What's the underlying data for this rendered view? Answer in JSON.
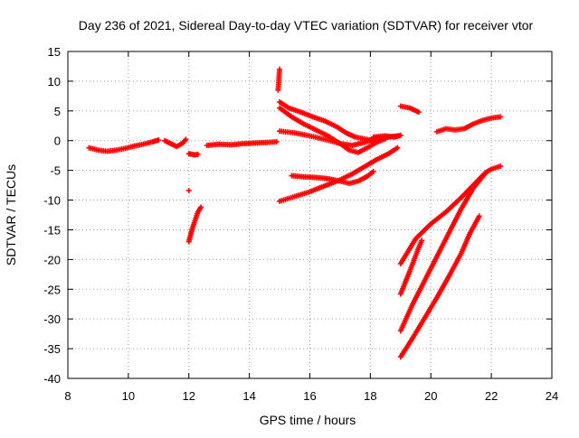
{
  "chart_data": {
    "type": "scatter",
    "title": "Day 236 of 2021, Sidereal Day-to-day VTEC variation (SDTVAR) for receiver vtor",
    "xlabel": "GPS time / hours",
    "ylabel": "SDTVAR / TECUs",
    "xlim": [
      8,
      24
    ],
    "ylim": [
      -40,
      15
    ],
    "xticks": [
      8,
      10,
      12,
      14,
      16,
      18,
      20,
      22,
      24
    ],
    "yticks": [
      -40,
      -35,
      -30,
      -25,
      -20,
      -15,
      -10,
      -5,
      0,
      5,
      10,
      15
    ],
    "grid": true,
    "marker": "+",
    "color": "#ff0000",
    "series": [
      {
        "points": [
          [
            8.7,
            -1.2
          ],
          [
            9.0,
            -1.6
          ],
          [
            9.3,
            -1.8
          ],
          [
            9.6,
            -1.6
          ],
          [
            9.9,
            -1.3
          ],
          [
            10.2,
            -0.9
          ],
          [
            10.5,
            -0.6
          ],
          [
            10.8,
            -0.2
          ],
          [
            11.0,
            0.1
          ]
        ]
      },
      {
        "points": [
          [
            11.2,
            0.0
          ],
          [
            11.4,
            -0.5
          ],
          [
            11.6,
            -1.0
          ],
          [
            11.8,
            -0.4
          ],
          [
            11.9,
            0.2
          ]
        ]
      },
      {
        "points": [
          [
            12.0,
            -2.2
          ],
          [
            12.2,
            -2.4
          ],
          [
            12.3,
            -2.3
          ]
        ]
      },
      {
        "points": [
          [
            12.0,
            -8.4
          ]
        ]
      },
      {
        "points": [
          [
            12.0,
            -17.0
          ],
          [
            12.1,
            -15.0
          ],
          [
            12.2,
            -13.5
          ],
          [
            12.3,
            -12.0
          ],
          [
            12.4,
            -11.2
          ]
        ]
      },
      {
        "points": [
          [
            12.6,
            -0.8
          ],
          [
            13.0,
            -0.6
          ],
          [
            13.4,
            -0.7
          ],
          [
            13.8,
            -0.5
          ],
          [
            14.2,
            -0.4
          ],
          [
            14.6,
            -0.3
          ],
          [
            14.9,
            -0.2
          ]
        ]
      },
      {
        "points": [
          [
            15.0,
            12.0
          ],
          [
            14.95,
            8.5
          ]
        ]
      },
      {
        "points": [
          [
            15.0,
            6.5
          ],
          [
            15.3,
            5.5
          ],
          [
            15.7,
            4.8
          ],
          [
            16.1,
            4.0
          ],
          [
            16.5,
            3.3
          ],
          [
            16.9,
            2.3
          ],
          [
            17.2,
            1.3
          ],
          [
            17.5,
            0.6
          ],
          [
            17.8,
            0.3
          ],
          [
            18.1,
            0.0
          ]
        ]
      },
      {
        "points": [
          [
            15.0,
            5.5
          ],
          [
            15.4,
            4.0
          ],
          [
            15.8,
            2.8
          ],
          [
            16.2,
            1.8
          ],
          [
            16.6,
            0.8
          ],
          [
            17.0,
            -0.5
          ],
          [
            17.3,
            -1.6
          ],
          [
            17.6,
            -2.0
          ],
          [
            17.9,
            -1.2
          ],
          [
            18.2,
            -0.3
          ],
          [
            18.5,
            0.3
          ]
        ]
      },
      {
        "points": [
          [
            15.0,
            1.6
          ],
          [
            15.5,
            1.3
          ],
          [
            16.0,
            0.8
          ],
          [
            16.5,
            0.2
          ],
          [
            17.0,
            -0.5
          ],
          [
            17.4,
            -0.8
          ],
          [
            17.8,
            -0.3
          ],
          [
            18.2,
            0.3
          ],
          [
            18.6,
            0.6
          ],
          [
            18.9,
            0.8
          ]
        ]
      },
      {
        "points": [
          [
            15.0,
            -10.2
          ],
          [
            15.5,
            -9.4
          ],
          [
            16.0,
            -8.6
          ],
          [
            16.5,
            -7.6
          ],
          [
            17.0,
            -6.6
          ],
          [
            17.4,
            -5.6
          ],
          [
            17.8,
            -4.4
          ],
          [
            18.2,
            -3.2
          ],
          [
            18.6,
            -2.2
          ],
          [
            18.9,
            -1.2
          ]
        ]
      },
      {
        "points": [
          [
            15.4,
            -5.9
          ],
          [
            15.8,
            -6.1
          ],
          [
            16.2,
            -6.2
          ],
          [
            16.6,
            -6.4
          ],
          [
            17.0,
            -6.8
          ],
          [
            17.3,
            -7.2
          ],
          [
            17.6,
            -6.8
          ],
          [
            17.9,
            -6.0
          ],
          [
            18.1,
            -5.2
          ]
        ]
      },
      {
        "points": [
          [
            18.1,
            0.6
          ],
          [
            18.5,
            0.8
          ],
          [
            18.8,
            0.6
          ],
          [
            19.0,
            0.9
          ]
        ]
      },
      {
        "points": [
          [
            19.0,
            5.8
          ],
          [
            19.3,
            5.5
          ],
          [
            19.6,
            4.8
          ]
        ]
      },
      {
        "points": [
          [
            20.2,
            1.5
          ],
          [
            20.5,
            2.0
          ],
          [
            20.8,
            1.8
          ],
          [
            21.1,
            2.0
          ],
          [
            21.4,
            2.8
          ],
          [
            21.7,
            3.4
          ],
          [
            22.0,
            3.8
          ],
          [
            22.3,
            4.0
          ]
        ]
      },
      {
        "points": [
          [
            19.0,
            -20.7
          ],
          [
            19.5,
            -16.5
          ],
          [
            20.0,
            -14.0
          ],
          [
            20.5,
            -12.0
          ],
          [
            21.0,
            -9.6
          ],
          [
            21.4,
            -7.5
          ],
          [
            21.8,
            -5.4
          ],
          [
            22.0,
            -4.8
          ],
          [
            22.3,
            -4.3
          ]
        ]
      },
      {
        "points": [
          [
            19.0,
            -25.8
          ],
          [
            19.3,
            -22.0
          ],
          [
            19.6,
            -18.0
          ],
          [
            19.7,
            -16.8
          ]
        ]
      },
      {
        "points": [
          [
            19.0,
            -32.0
          ],
          [
            19.4,
            -27.5
          ],
          [
            19.8,
            -23.5
          ],
          [
            20.2,
            -19.5
          ],
          [
            20.6,
            -15.5
          ],
          [
            21.0,
            -11.5
          ],
          [
            21.4,
            -8.0
          ],
          [
            21.8,
            -5.5
          ]
        ]
      },
      {
        "points": [
          [
            19.0,
            -36.4
          ],
          [
            19.4,
            -33.2
          ],
          [
            19.8,
            -29.8
          ],
          [
            20.2,
            -26.4
          ],
          [
            20.6,
            -22.8
          ],
          [
            21.0,
            -19.0
          ],
          [
            21.3,
            -15.5
          ],
          [
            21.6,
            -12.7
          ]
        ]
      }
    ]
  }
}
